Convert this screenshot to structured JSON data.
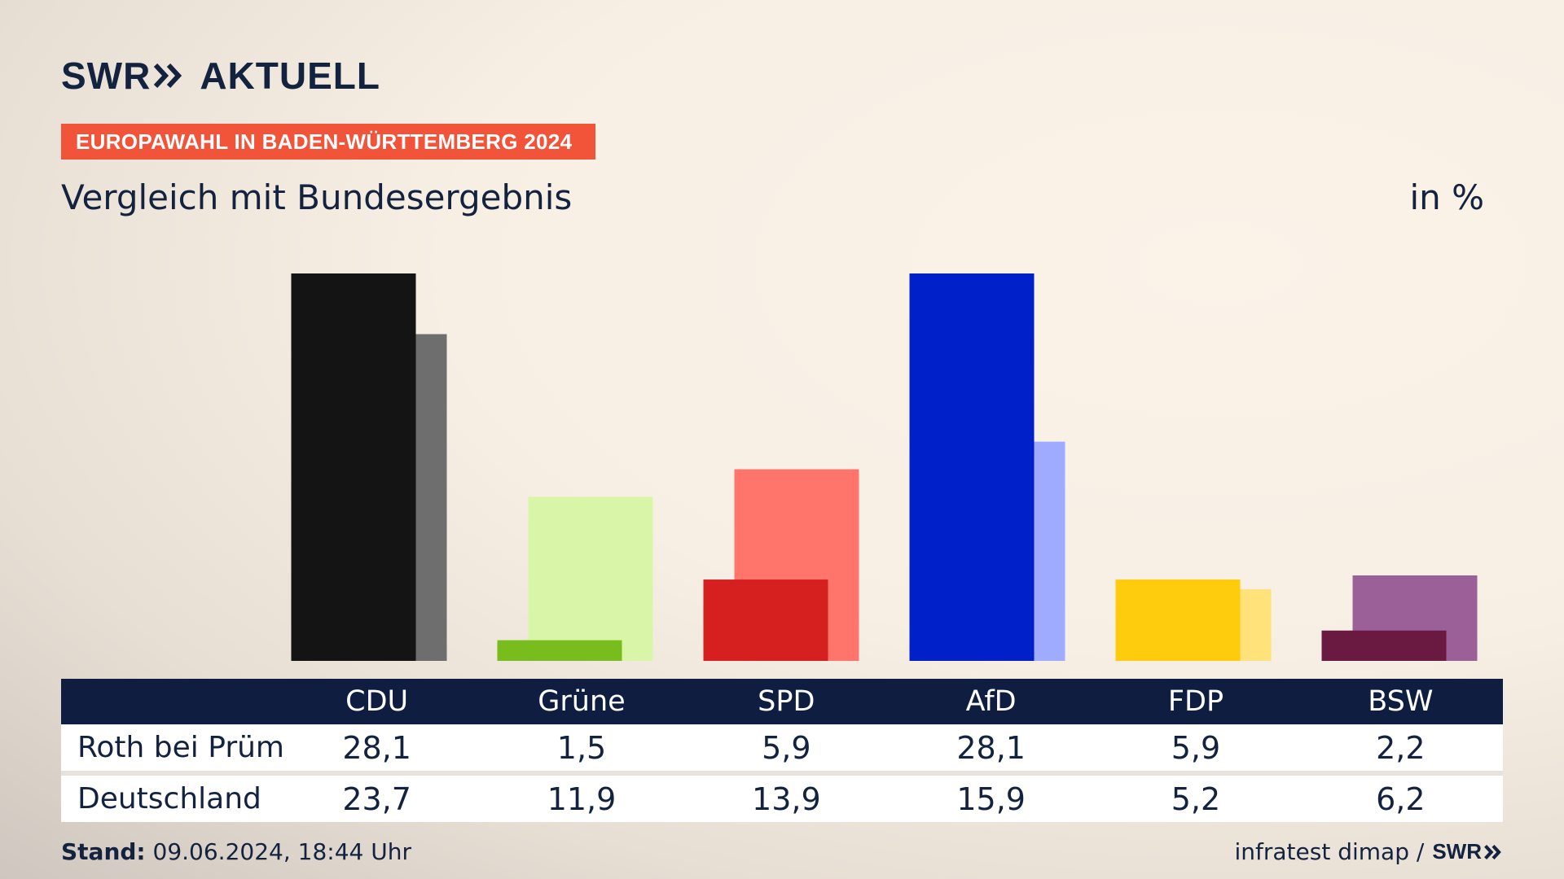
{
  "header": {
    "logo_brand": "SWR",
    "logo_text": "AKTUELL",
    "badge": "EUROPAWAHL IN BADEN-WÜRTTEMBERG 2024",
    "subtitle": "Vergleich mit Bundesergebnis",
    "unit": "in %"
  },
  "table": {
    "rows": [
      {
        "label": "Roth bei Prüm",
        "values": [
          "28,1",
          "1,5",
          "5,9",
          "28,1",
          "5,9",
          "2,2"
        ]
      },
      {
        "label": "Deutschland",
        "values": [
          "23,7",
          "11,9",
          "13,9",
          "15,9",
          "5,2",
          "6,2"
        ]
      }
    ]
  },
  "footer": {
    "stand_label": "Stand:",
    "stand_value": " 09.06.2024, 18:44 Uhr",
    "source": "infratest dimap /",
    "brand": "SWR"
  },
  "chart_data": {
    "type": "bar",
    "categories": [
      "CDU",
      "Grüne",
      "SPD",
      "AfD",
      "FDP",
      "BSW"
    ],
    "series": [
      {
        "name": "Roth bei Prüm",
        "values": [
          28.1,
          1.5,
          5.9,
          28.1,
          5.9,
          2.2
        ],
        "colors": [
          "#141414",
          "#78bc1e",
          "#d62020",
          "#0021c9",
          "#ffcc0d",
          "#6a1941"
        ]
      },
      {
        "name": "Deutschland",
        "values": [
          23.7,
          11.9,
          13.9,
          15.9,
          5.2,
          6.2
        ],
        "colors": [
          "#6e6e6e",
          "#d8f5a8",
          "#ff756c",
          "#9fabff",
          "#ffe27a",
          "#9c6098"
        ]
      }
    ],
    "ylim": [
      0,
      28.1
    ],
    "grid": false,
    "legend": "none"
  }
}
